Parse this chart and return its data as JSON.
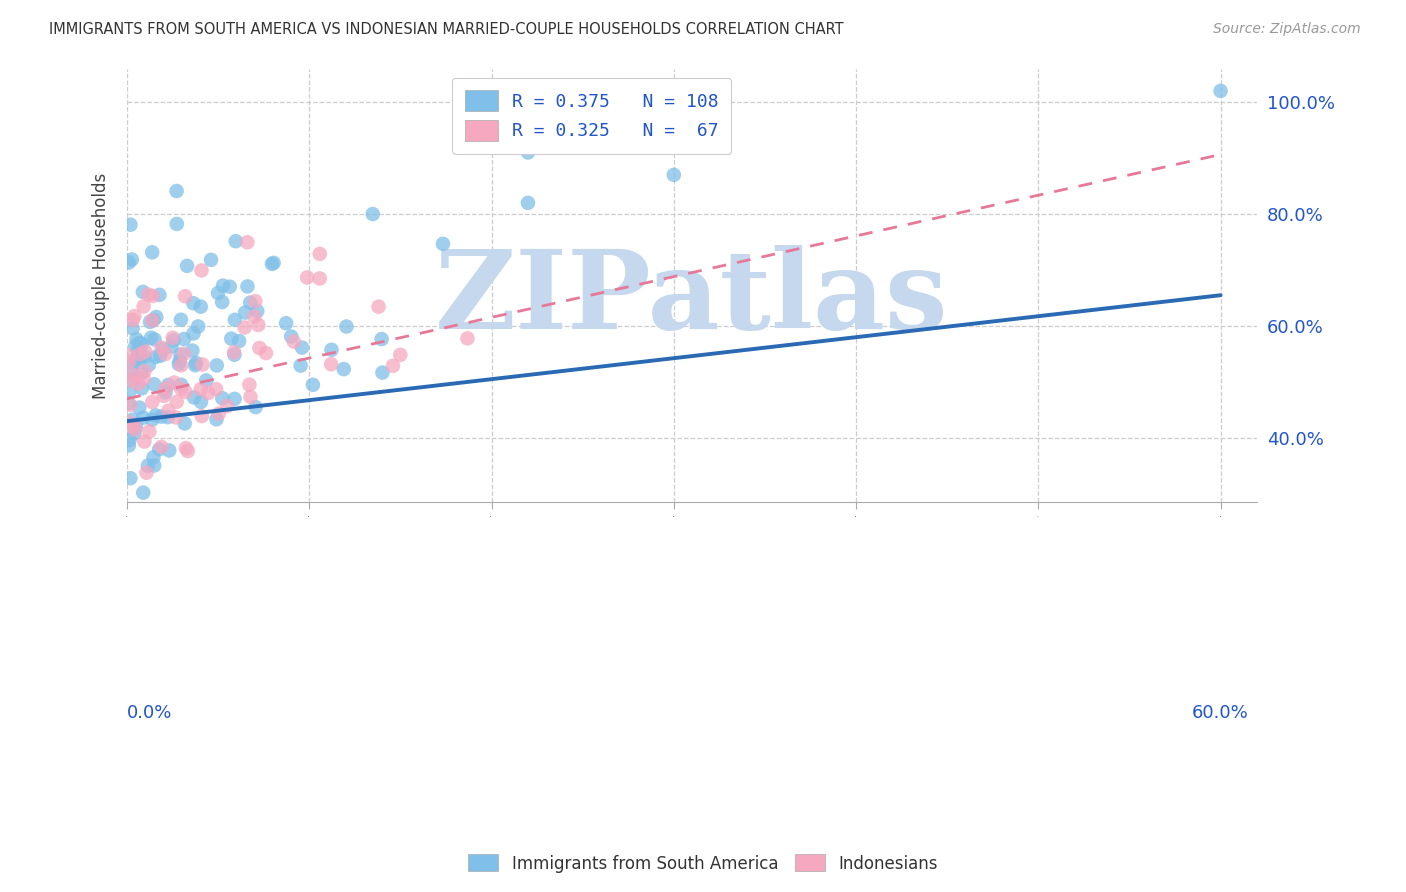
{
  "title": "IMMIGRANTS FROM SOUTH AMERICA VS INDONESIAN MARRIED-COUPLE HOUSEHOLDS CORRELATION CHART",
  "source": "Source: ZipAtlas.com",
  "ylabel": "Married-couple Households",
  "yaxis_labels": [
    "40.0%",
    "60.0%",
    "80.0%",
    "100.0%"
  ],
  "yaxis_values": [
    0.4,
    0.6,
    0.8,
    1.0
  ],
  "xlim": [
    0.0,
    0.62
  ],
  "ylim": [
    0.285,
    1.06
  ],
  "blue_color": "#7fbfe8",
  "pink_color": "#f5a8c0",
  "blue_line_color": "#2a6ab5",
  "pink_line_color": "#e87898",
  "text_color": "#2255cc",
  "title_color": "#333333",
  "source_color": "#999999",
  "watermark": "ZIPatlas",
  "watermark_color": "#c5d8ee",
  "legend_label1": "R = 0.375   N = 108",
  "legend_label2": "R = 0.325   N =  67",
  "bottom_label1": "Immigrants from South America",
  "bottom_label2": "Indonesians",
  "seed_blue": 42,
  "seed_pink": 99,
  "n_blue": 108,
  "n_pink": 67,
  "r_blue": 0.375,
  "r_pink": 0.325
}
